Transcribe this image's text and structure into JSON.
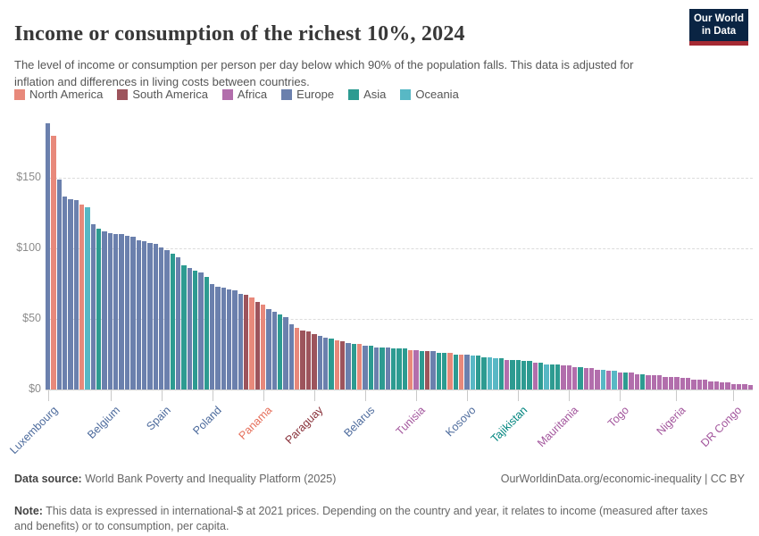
{
  "header": {
    "title": "Income or consumption of the richest 10%, 2024",
    "subtitle": "The level of income or consumption per person per day below which 90% of the population falls. This data is adjusted for inflation and differences in living costs between countries.",
    "logo_line1": "Our World",
    "logo_line2": "in Data",
    "logo_bg": "#0A2443",
    "logo_stripe": "#A52A33"
  },
  "continents": {
    "NA": {
      "label": "North America",
      "bar": "#E8897B",
      "text": "#E56E5A"
    },
    "SA": {
      "label": "South America",
      "bar": "#9D545C",
      "text": "#883039"
    },
    "AF": {
      "label": "Africa",
      "bar": "#B26EAC",
      "text": "#A2559C"
    },
    "EU": {
      "label": "Europe",
      "bar": "#6B80AD",
      "text": "#4C6A9C"
    },
    "AS": {
      "label": "Asia",
      "bar": "#2D9B91",
      "text": "#00847E"
    },
    "OC": {
      "label": "Oceania",
      "bar": "#58B8C5",
      "text": "#38AABA"
    }
  },
  "legend_order": [
    "NA",
    "SA",
    "AF",
    "EU",
    "AS",
    "OC"
  ],
  "chart_data": {
    "type": "bar",
    "title": "Income or consumption of the richest 10%, 2024",
    "unit_prefix": "$",
    "ylim": [
      0,
      190
    ],
    "grid": true,
    "yticks": [
      {
        "value": 0,
        "label": "$0"
      },
      {
        "value": 50,
        "label": "$50"
      },
      {
        "value": 100,
        "label": "$100"
      },
      {
        "value": 150,
        "label": "$150"
      }
    ],
    "bars": [
      {
        "v": 189,
        "c": "EU"
      },
      {
        "v": 180,
        "c": "NA"
      },
      {
        "v": 149,
        "c": "EU"
      },
      {
        "v": 137,
        "c": "EU"
      },
      {
        "v": 135,
        "c": "EU"
      },
      {
        "v": 134,
        "c": "EU"
      },
      {
        "v": 131,
        "c": "NA"
      },
      {
        "v": 129,
        "c": "OC"
      },
      {
        "v": 117,
        "c": "EU"
      },
      {
        "v": 114,
        "c": "AS"
      },
      {
        "v": 112,
        "c": "EU"
      },
      {
        "v": 111,
        "c": "EU"
      },
      {
        "v": 110,
        "c": "EU"
      },
      {
        "v": 110,
        "c": "EU"
      },
      {
        "v": 109,
        "c": "EU"
      },
      {
        "v": 108,
        "c": "EU"
      },
      {
        "v": 106,
        "c": "EU"
      },
      {
        "v": 105,
        "c": "EU"
      },
      {
        "v": 104,
        "c": "EU"
      },
      {
        "v": 103,
        "c": "EU"
      },
      {
        "v": 101,
        "c": "EU"
      },
      {
        "v": 99,
        "c": "EU"
      },
      {
        "v": 96,
        "c": "AS"
      },
      {
        "v": 94,
        "c": "EU"
      },
      {
        "v": 88,
        "c": "AS"
      },
      {
        "v": 86,
        "c": "EU"
      },
      {
        "v": 84,
        "c": "AS"
      },
      {
        "v": 83,
        "c": "EU"
      },
      {
        "v": 80,
        "c": "AS"
      },
      {
        "v": 75,
        "c": "EU"
      },
      {
        "v": 73,
        "c": "EU"
      },
      {
        "v": 72,
        "c": "EU"
      },
      {
        "v": 71,
        "c": "EU"
      },
      {
        "v": 70,
        "c": "EU"
      },
      {
        "v": 68,
        "c": "EU"
      },
      {
        "v": 67,
        "c": "SA"
      },
      {
        "v": 65,
        "c": "NA"
      },
      {
        "v": 62,
        "c": "SA"
      },
      {
        "v": 60,
        "c": "NA"
      },
      {
        "v": 57,
        "c": "EU"
      },
      {
        "v": 55,
        "c": "EU"
      },
      {
        "v": 53,
        "c": "AS"
      },
      {
        "v": 51,
        "c": "EU"
      },
      {
        "v": 46,
        "c": "EU"
      },
      {
        "v": 44,
        "c": "NA"
      },
      {
        "v": 42,
        "c": "SA"
      },
      {
        "v": 41,
        "c": "SA"
      },
      {
        "v": 39,
        "c": "SA"
      },
      {
        "v": 38,
        "c": "EU"
      },
      {
        "v": 37,
        "c": "EU"
      },
      {
        "v": 36,
        "c": "AS"
      },
      {
        "v": 35,
        "c": "NA"
      },
      {
        "v": 34,
        "c": "SA"
      },
      {
        "v": 33,
        "c": "EU"
      },
      {
        "v": 32,
        "c": "AS"
      },
      {
        "v": 32,
        "c": "NA"
      },
      {
        "v": 31,
        "c": "EU"
      },
      {
        "v": 31,
        "c": "AS"
      },
      {
        "v": 30,
        "c": "EU"
      },
      {
        "v": 30,
        "c": "AS"
      },
      {
        "v": 30,
        "c": "EU"
      },
      {
        "v": 29,
        "c": "AS"
      },
      {
        "v": 29,
        "c": "AS"
      },
      {
        "v": 29,
        "c": "AS"
      },
      {
        "v": 28,
        "c": "NA"
      },
      {
        "v": 28,
        "c": "AF"
      },
      {
        "v": 27,
        "c": "AS"
      },
      {
        "v": 27,
        "c": "SA"
      },
      {
        "v": 27,
        "c": "EU"
      },
      {
        "v": 26,
        "c": "AS"
      },
      {
        "v": 26,
        "c": "AS"
      },
      {
        "v": 26,
        "c": "NA"
      },
      {
        "v": 25,
        "c": "AS"
      },
      {
        "v": 25,
        "c": "NA"
      },
      {
        "v": 25,
        "c": "EU"
      },
      {
        "v": 24,
        "c": "OC"
      },
      {
        "v": 24,
        "c": "AS"
      },
      {
        "v": 23,
        "c": "AS"
      },
      {
        "v": 23,
        "c": "OC"
      },
      {
        "v": 22,
        "c": "OC"
      },
      {
        "v": 22,
        "c": "AS"
      },
      {
        "v": 21,
        "c": "AF"
      },
      {
        "v": 21,
        "c": "AS"
      },
      {
        "v": 21,
        "c": "AS"
      },
      {
        "v": 20,
        "c": "AS"
      },
      {
        "v": 20,
        "c": "AS"
      },
      {
        "v": 19,
        "c": "AF"
      },
      {
        "v": 19,
        "c": "AS"
      },
      {
        "v": 18,
        "c": "OC"
      },
      {
        "v": 18,
        "c": "AS"
      },
      {
        "v": 18,
        "c": "AS"
      },
      {
        "v": 17,
        "c": "AF"
      },
      {
        "v": 17,
        "c": "AF"
      },
      {
        "v": 16,
        "c": "AF"
      },
      {
        "v": 16,
        "c": "AS"
      },
      {
        "v": 15,
        "c": "AF"
      },
      {
        "v": 15,
        "c": "AF"
      },
      {
        "v": 14,
        "c": "AF"
      },
      {
        "v": 14,
        "c": "OC"
      },
      {
        "v": 13,
        "c": "AF"
      },
      {
        "v": 13,
        "c": "OC"
      },
      {
        "v": 12,
        "c": "AF"
      },
      {
        "v": 12,
        "c": "AS"
      },
      {
        "v": 12,
        "c": "AF"
      },
      {
        "v": 11,
        "c": "AF"
      },
      {
        "v": 11,
        "c": "AS"
      },
      {
        "v": 10,
        "c": "AF"
      },
      {
        "v": 10,
        "c": "AF"
      },
      {
        "v": 10,
        "c": "AF"
      },
      {
        "v": 9,
        "c": "AF"
      },
      {
        "v": 9,
        "c": "AF"
      },
      {
        "v": 9,
        "c": "AF"
      },
      {
        "v": 8,
        "c": "AF"
      },
      {
        "v": 8,
        "c": "AF"
      },
      {
        "v": 7,
        "c": "AF"
      },
      {
        "v": 7,
        "c": "AF"
      },
      {
        "v": 7,
        "c": "AF"
      },
      {
        "v": 6,
        "c": "AF"
      },
      {
        "v": 6,
        "c": "AF"
      },
      {
        "v": 5,
        "c": "AF"
      },
      {
        "v": 5,
        "c": "AF"
      },
      {
        "v": 4,
        "c": "AF"
      },
      {
        "v": 4,
        "c": "AF"
      },
      {
        "v": 4,
        "c": "AF"
      },
      {
        "v": 3,
        "c": "AF"
      }
    ],
    "x_tick_labels": [
      {
        "bar": 1,
        "label": "Luxembourg",
        "c": "EU"
      },
      {
        "bar": 12,
        "label": "Belgium",
        "c": "EU"
      },
      {
        "bar": 21,
        "label": "Spain",
        "c": "EU"
      },
      {
        "bar": 30,
        "label": "Poland",
        "c": "EU"
      },
      {
        "bar": 39,
        "label": "Panama",
        "c": "NA"
      },
      {
        "bar": 48,
        "label": "Paraguay",
        "c": "SA"
      },
      {
        "bar": 57,
        "label": "Belarus",
        "c": "EU"
      },
      {
        "bar": 66,
        "label": "Tunisia",
        "c": "AF"
      },
      {
        "bar": 75,
        "label": "Kosovo",
        "c": "EU"
      },
      {
        "bar": 84,
        "label": "Tajikistan",
        "c": "AS"
      },
      {
        "bar": 93,
        "label": "Mauritania",
        "c": "AF"
      },
      {
        "bar": 102,
        "label": "Togo",
        "c": "AF"
      },
      {
        "bar": 112,
        "label": "Nigeria",
        "c": "AF"
      },
      {
        "bar": 122,
        "label": "DR Congo",
        "c": "AF"
      }
    ]
  },
  "footer": {
    "source_label": "Data source:",
    "source_text": " World Bank Poverty and Inequality Platform (2025)",
    "rights": "OurWorldinData.org/economic-inequality | CC BY",
    "note_label": "Note:",
    "note_text": " This data is expressed in international-$ at 2021 prices. Depending on the country and year, it relates to income (measured after taxes and benefits) or to consumption, per capita."
  }
}
